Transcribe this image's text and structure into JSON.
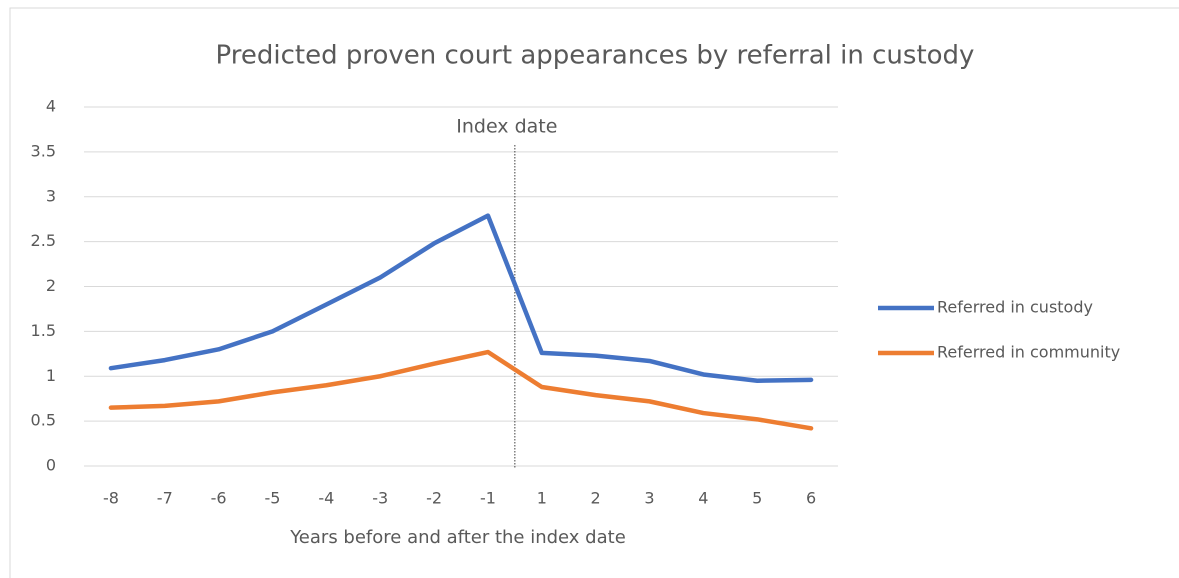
{
  "chart_data": {
    "type": "line",
    "title": "Predicted proven court appearances by referral in custody",
    "x_label": "Years before and after the index date",
    "annotation": "Index date",
    "categories": [
      "-8",
      "-7",
      "-6",
      "-5",
      "-4",
      "-3",
      "-2",
      "-1",
      "1",
      "2",
      "3",
      "4",
      "5",
      "6"
    ],
    "series": [
      {
        "name": "Referred in custody",
        "color": "#4472c4",
        "values": [
          1.09,
          1.18,
          1.3,
          1.5,
          1.8,
          2.1,
          2.48,
          2.79,
          1.26,
          1.23,
          1.17,
          1.02,
          0.95,
          0.96
        ]
      },
      {
        "name": "Referred in community",
        "color": "#ed7d31",
        "values": [
          0.65,
          0.67,
          0.72,
          0.82,
          0.9,
          1.0,
          1.14,
          1.27,
          0.88,
          0.79,
          0.72,
          0.59,
          0.52,
          0.42
        ]
      }
    ],
    "ylim": [
      0,
      4
    ],
    "yticks": [
      0,
      0.5,
      1,
      1.5,
      2,
      2.5,
      3,
      3.5,
      4
    ],
    "grid": true,
    "legend": "right"
  }
}
